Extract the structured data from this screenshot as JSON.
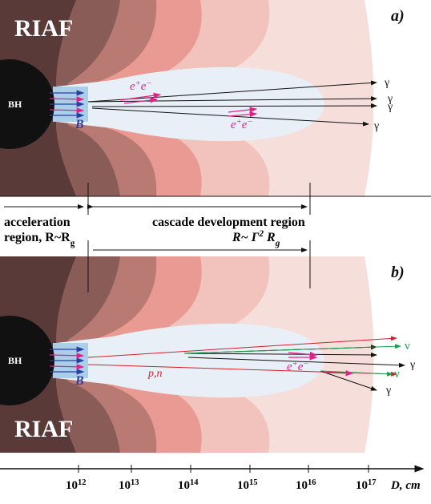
{
  "panel_a": {
    "label": "a)",
    "riaf": "RIAF",
    "bh": "BH",
    "field": "B",
    "pairs": [
      [
        "e",
        "+",
        "e",
        "−"
      ],
      [
        "e",
        "+",
        "e",
        "−"
      ]
    ],
    "photons": [
      "γ",
      "γ",
      "γ",
      "γ"
    ]
  },
  "regions": {
    "acceleration": [
      "acceleration"
    ],
    "acceleration_size": [
      "region, ",
      "R~R",
      "g"
    ],
    "cascade": [
      "cascade development region"
    ],
    "cascade_size": [
      "R~ Γ",
      "2",
      " R",
      "g"
    ]
  },
  "panel_b": {
    "label": "b)",
    "riaf": "RIAF",
    "bh": "BH",
    "field": "B",
    "nucleons": "p,n",
    "pairs": [
      [
        "e",
        "+",
        "e",
        "−"
      ]
    ],
    "photons": [
      "γ",
      "γ"
    ],
    "neutrinos": [
      "ν",
      "ν"
    ]
  },
  "axis": {
    "ticks": [
      [
        "10",
        "12"
      ],
      [
        "10",
        "13"
      ],
      [
        "10",
        "14"
      ],
      [
        "10",
        "15"
      ],
      [
        "10",
        "16"
      ],
      [
        "10",
        "17"
      ]
    ],
    "label": "D, cm"
  }
}
